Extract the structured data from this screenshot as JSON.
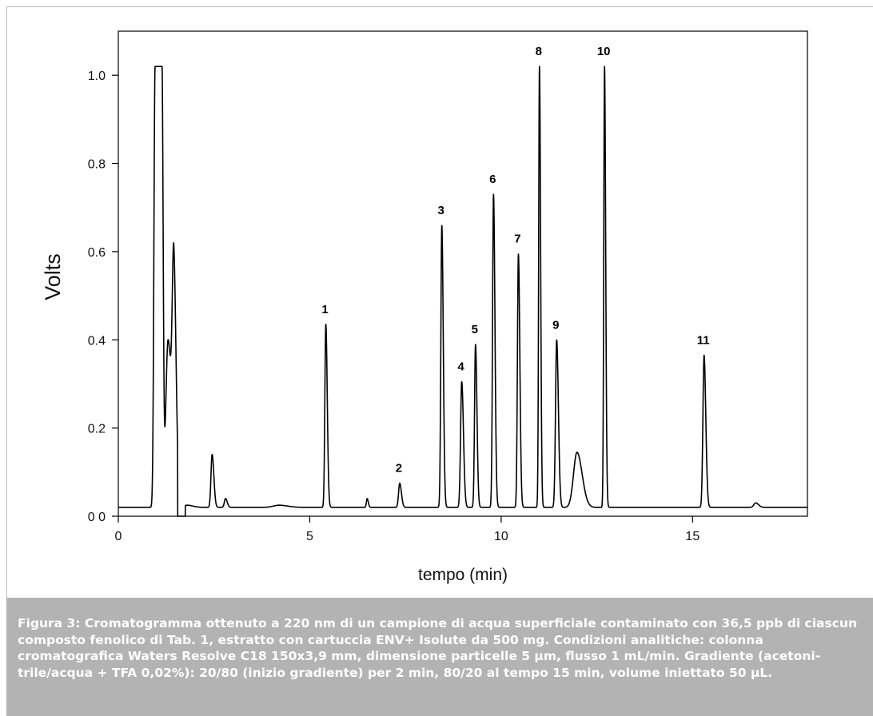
{
  "chart_data": {
    "type": "line",
    "xlabel": "tempo (min)",
    "ylabel": "Volts",
    "xlim": [
      0,
      18
    ],
    "ylim": [
      0,
      1.1
    ],
    "x_ticks": [
      "0",
      "5",
      "10",
      "15"
    ],
    "y_ticks": [
      "0 0",
      "0.2",
      "0.4",
      "0.6",
      "0.8",
      "1.0"
    ],
    "grid": false,
    "series": [
      {
        "baseline": 0.02,
        "peaks": [
          {
            "label": "",
            "t": 1.05,
            "h": 1.0,
            "w": 0.03,
            "shape": "flat"
          },
          {
            "label": "",
            "t": 1.3,
            "h": 0.38,
            "w": 0.06
          },
          {
            "label": "",
            "t": 1.45,
            "h": 0.5,
            "w": 0.04
          },
          {
            "label": "",
            "t": 1.8,
            "h": 0.005,
            "w": 0.1
          },
          {
            "label": "",
            "t": 2.45,
            "h": 0.12,
            "w": 0.03
          },
          {
            "label": "",
            "t": 2.8,
            "h": 0.02,
            "w": 0.03
          },
          {
            "label": "",
            "t": 4.2,
            "h": 0.005,
            "w": 0.15
          },
          {
            "label": "1",
            "t": 5.42,
            "h": 0.415,
            "w": 0.025
          },
          {
            "label": "",
            "t": 6.5,
            "h": 0.02,
            "w": 0.02
          },
          {
            "label": "2",
            "t": 7.35,
            "h": 0.055,
            "w": 0.03
          },
          {
            "label": "3",
            "t": 8.45,
            "h": 0.64,
            "w": 0.025
          },
          {
            "label": "4",
            "t": 8.97,
            "h": 0.285,
            "w": 0.03
          },
          {
            "label": "5",
            "t": 9.33,
            "h": 0.37,
            "w": 0.025
          },
          {
            "label": "6",
            "t": 9.8,
            "h": 0.71,
            "w": 0.025
          },
          {
            "label": "7",
            "t": 10.45,
            "h": 0.575,
            "w": 0.025
          },
          {
            "label": "8",
            "t": 11.0,
            "h": 1.0,
            "w": 0.02
          },
          {
            "label": "9",
            "t": 11.45,
            "h": 0.38,
            "w": 0.03
          },
          {
            "label": "",
            "t": 11.98,
            "h": 0.125,
            "w": 0.09
          },
          {
            "label": "10",
            "t": 12.7,
            "h": 1.0,
            "w": 0.02
          },
          {
            "label": "11",
            "t": 15.3,
            "h": 0.345,
            "w": 0.03
          },
          {
            "label": "",
            "t": 16.65,
            "h": 0.01,
            "w": 0.05
          }
        ],
        "dropout": {
          "from": 1.55,
          "to": 1.75
        }
      }
    ]
  },
  "caption": {
    "text": "Figura 3: Cromatogramma ottenuto a 220 nm di un campione di acqua superficiale contaminato con 36,5 ppb di ciascun composto fenolico di Tab. 1, estratto con cartuccia ENV+ Isolute da 500 mg. Condizioni analitiche: colonna cromatografica Waters Resolve C18 150x3,9 mm, dimensione particelle 5 µm, flusso 1 mL/min. Gradiente (acetoni-trile/acqua + TFA 0,02%): 20/80 (inizio gradiente) per 2 min, 80/20 al tempo 15 min, volume iniettato 50 µL."
  }
}
